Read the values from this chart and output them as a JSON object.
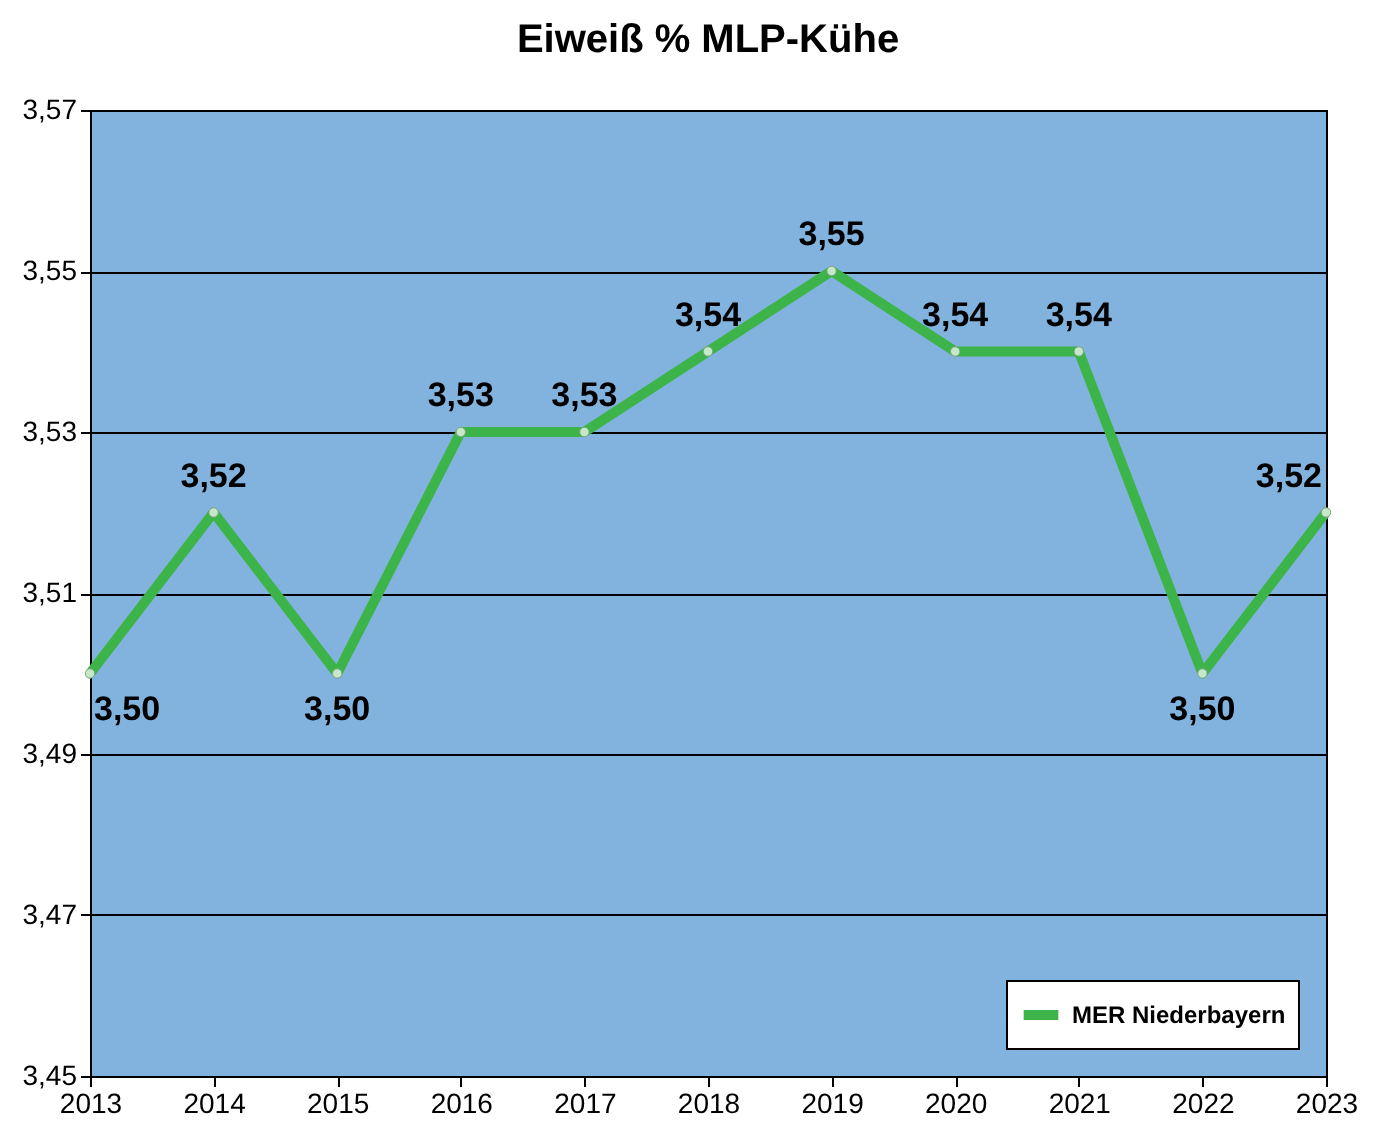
{
  "chart_data": {
    "type": "line",
    "title": "Eiweiß % MLP-Kühe",
    "categories": [
      "2013",
      "2014",
      "2015",
      "2016",
      "2017",
      "2018",
      "2019",
      "2020",
      "2021",
      "2022",
      "2023"
    ],
    "series": [
      {
        "name": "MER Niederbayern",
        "color": "#3cb44a",
        "values": [
          3.5,
          3.52,
          3.5,
          3.53,
          3.53,
          3.54,
          3.55,
          3.54,
          3.54,
          3.5,
          3.52
        ],
        "value_labels": [
          "3,50",
          "3,52",
          "3,50",
          "3,53",
          "3,53",
          "3,54",
          "3,55",
          "3,54",
          "3,54",
          "3,50",
          "3,52"
        ]
      }
    ],
    "ylim": [
      3.45,
      3.57
    ],
    "yticks": [
      {
        "value": 3.45,
        "label": "3,45"
      },
      {
        "value": 3.47,
        "label": "3,47"
      },
      {
        "value": 3.49,
        "label": "3,49"
      },
      {
        "value": 3.51,
        "label": "3,51"
      },
      {
        "value": 3.53,
        "label": "3,53"
      },
      {
        "value": 3.55,
        "label": "3,55"
      },
      {
        "value": 3.57,
        "label": "3,57"
      }
    ],
    "grid": "y",
    "legend": "bottom right",
    "marker": "circle",
    "line_style": "solid"
  }
}
